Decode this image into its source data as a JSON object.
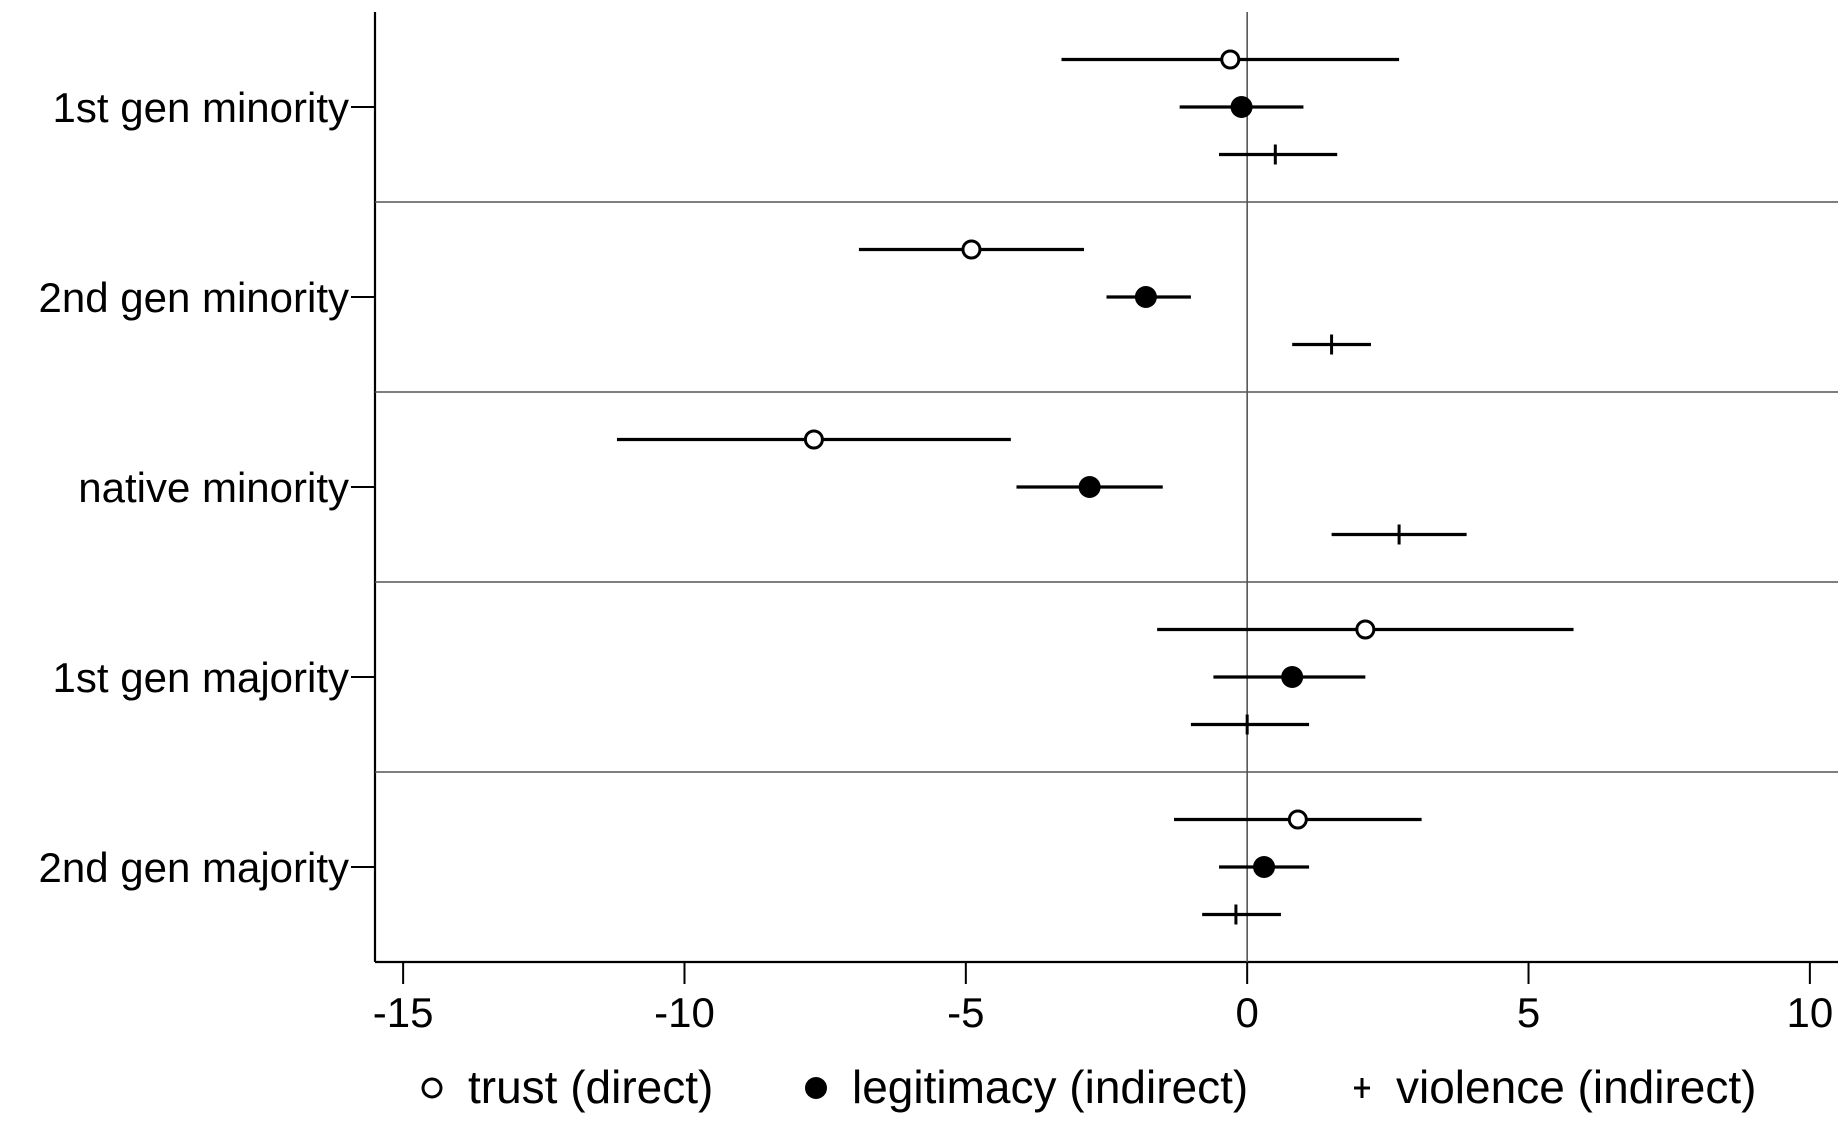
{
  "chart_data": {
    "type": "scatter",
    "subtype": "coefficient-plot",
    "title": "",
    "xlabel": "",
    "ylabel": "",
    "xlim": [
      -15.5,
      10.5
    ],
    "xticks": [
      -15,
      -10,
      -5,
      0,
      5,
      10
    ],
    "xtick_labels": [
      "-15",
      "-10",
      "-5",
      "0",
      "5",
      "10"
    ],
    "reference_line_x": 0,
    "grid": false,
    "legend_position": "bottom",
    "categories": [
      "1st gen minority",
      "2nd gen minority",
      "native minority",
      "1st gen majority",
      "2nd gen majority"
    ],
    "series": [
      {
        "name": "trust (direct)",
        "marker": "hollow-circle",
        "color": "#000000",
        "estimates": [
          -0.3,
          -4.9,
          -7.7,
          2.1,
          0.9
        ],
        "ci_low": [
          -3.3,
          -6.9,
          -11.2,
          -1.6,
          -1.3
        ],
        "ci_high": [
          2.7,
          -2.9,
          -4.2,
          5.8,
          3.1
        ]
      },
      {
        "name": "legitimacy (indirect)",
        "marker": "filled-circle",
        "color": "#000000",
        "estimates": [
          -0.1,
          -1.8,
          -2.8,
          0.8,
          0.3
        ],
        "ci_low": [
          -1.2,
          -2.5,
          -4.1,
          -0.6,
          -0.5
        ],
        "ci_high": [
          1.0,
          -1.0,
          -1.5,
          2.1,
          1.1
        ]
      },
      {
        "name": "violence (indirect)",
        "marker": "plus",
        "color": "#000000",
        "estimates": [
          0.5,
          1.5,
          2.7,
          0.0,
          -0.2
        ],
        "ci_low": [
          -0.5,
          0.8,
          1.5,
          -1.0,
          -0.8
        ],
        "ci_high": [
          1.6,
          2.2,
          3.9,
          1.1,
          0.6
        ]
      }
    ]
  }
}
